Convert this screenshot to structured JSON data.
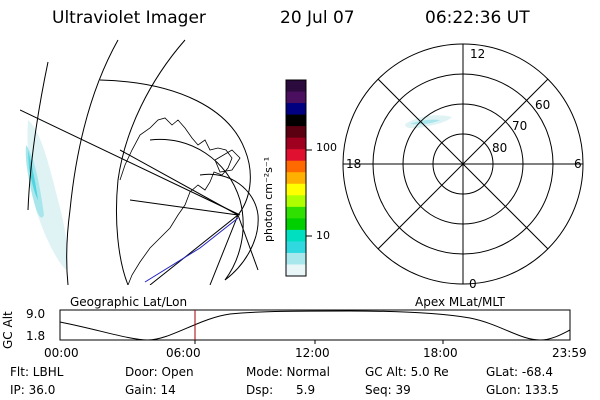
{
  "header": {
    "instrument": "Ultraviolet Imager",
    "date": "20 Jul 07",
    "time": "06:22:36 UT"
  },
  "colorbar": {
    "unit_label": "photon cm⁻²s⁻¹",
    "ticks": [
      "100",
      "10"
    ],
    "colors": [
      "#2b0a3d",
      "#4a0f5e",
      "#000080",
      "#000000",
      "#5a0010",
      "#a00020",
      "#e01030",
      "#ff6a00",
      "#ffb000",
      "#ffff00",
      "#b0ff00",
      "#30e000",
      "#00d000",
      "#00e0c0",
      "#30d8e0",
      "#a8e8ec",
      "#e8f6f8"
    ]
  },
  "polar_plot": {
    "mlt_labels": {
      "top": "12",
      "left": "18",
      "right": "6",
      "bottom": "0"
    },
    "lat_labels": [
      "60",
      "70",
      "80"
    ]
  },
  "projection_labels": {
    "left": "Geographic Lat/Lon",
    "right": "Apex MLat/MLT"
  },
  "altitude_plot": {
    "axis_label": "GC Alt",
    "y_ticks": [
      "9.0",
      "1.8"
    ],
    "x_ticks": [
      "00:00",
      "06:00",
      "12:00",
      "18:00",
      "23:59"
    ]
  },
  "footer": {
    "flt": "Flt: LBHL",
    "door": "Door: Open",
    "mode": "Mode: Normal",
    "gc_alt": "GC Alt: 5.0 Re",
    "glat": "GLat: -68.4",
    "ip": "IP: 36.0",
    "gain": "Gain: 14",
    "dsp": "Dsp:      5.9",
    "seq": "Seq: 39",
    "glon": "GLon: 133.5"
  }
}
